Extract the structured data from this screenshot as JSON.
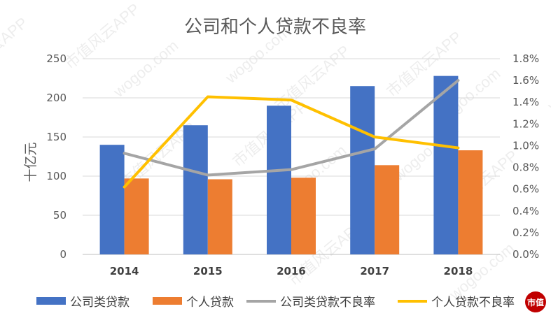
{
  "chart_data": {
    "type": "bar",
    "title": "公司和个人贷款不良率",
    "ylabel": "十亿元",
    "categories": [
      "2014",
      "2015",
      "2016",
      "2017",
      "2018"
    ],
    "ylim": [
      0,
      250
    ],
    "y_ticks": [
      "0",
      "50",
      "100",
      "150",
      "200",
      "250"
    ],
    "y2lim": [
      0.0,
      1.8
    ],
    "y2_ticks": [
      "0.0%",
      "0.2%",
      "0.4%",
      "0.6%",
      "0.8%",
      "1.0%",
      "1.2%",
      "1.4%",
      "1.6%",
      "1.8%"
    ],
    "legend_position": "bottom",
    "series": [
      {
        "name": "公司类贷款",
        "kind": "bar",
        "axis": "left",
        "color": "#4472C4",
        "values": [
          140,
          165,
          190,
          215,
          228
        ]
      },
      {
        "name": "个人贷款",
        "kind": "bar",
        "axis": "left",
        "color": "#ED7D31",
        "values": [
          97,
          96,
          98,
          114,
          133
        ]
      },
      {
        "name": "公司类贷款不良率",
        "kind": "line",
        "axis": "right",
        "color": "#A5A5A5",
        "values": [
          0.93,
          0.73,
          0.78,
          0.97,
          1.6
        ]
      },
      {
        "name": "个人贷款不良率",
        "kind": "line",
        "axis": "right",
        "color": "#FFC000",
        "values": [
          0.62,
          1.45,
          1.42,
          1.08,
          0.98
        ]
      }
    ]
  },
  "watermark": {
    "text": "市值风云APP",
    "url_text": "wogoo.com",
    "logo_text": "市值"
  }
}
